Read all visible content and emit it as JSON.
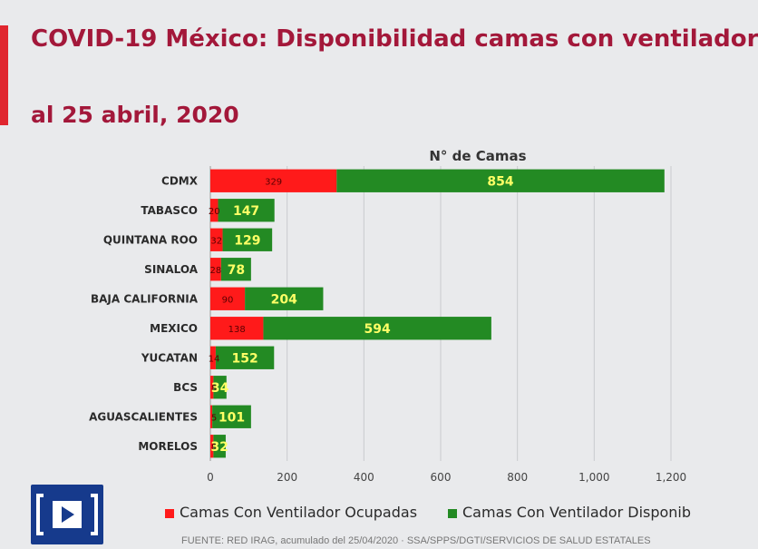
{
  "header": {
    "title_line1": "COVID-19 México: Disponibilidad camas con ventilador",
    "title_line2": "al 25 abril, 2020"
  },
  "colors": {
    "occupied": "#ff1a1a",
    "available": "#238a23",
    "value_label_available": "#ffff66",
    "title": "#a3183a",
    "accent": "#e0262f",
    "logo": "#163a8c"
  },
  "chart_data": {
    "type": "bar",
    "orientation": "horizontal",
    "stacked": true,
    "title": "N° de Camas",
    "xlabel": "",
    "ylabel": "",
    "xlim": [
      0,
      1200
    ],
    "x_ticks": [
      "0",
      "200",
      "400",
      "600",
      "800",
      "1,000",
      "1,200"
    ],
    "grid": true,
    "legend_position": "bottom",
    "categories": [
      "CDMX",
      "TABASCO",
      "QUINTANA ROO",
      "SINALOA",
      "BAJA CALIFORNIA",
      "MEXICO",
      "YUCATAN",
      "BCS",
      "AGUASCALIENTES",
      "MORELOS"
    ],
    "series": [
      {
        "name": "Camas Con Ventilador Ocupadas",
        "values": [
          329,
          20,
          32,
          28,
          90,
          138,
          14,
          8,
          5,
          8
        ]
      },
      {
        "name": "Camas Con Ventilador Disponibles",
        "values": [
          854,
          147,
          129,
          78,
          204,
          594,
          152,
          34,
          101,
          32
        ]
      }
    ]
  },
  "legend": {
    "occupied_label": "Camas Con Ventilador Ocupadas",
    "available_label": "Camas Con Ventilador Disponib"
  },
  "footer": {
    "source": "FUENTE: RED IRAG, acumulado del 25/04/2020 · SSA/SPPS/DGTI/SERVICIOS DE SALUD ESTATALES"
  }
}
